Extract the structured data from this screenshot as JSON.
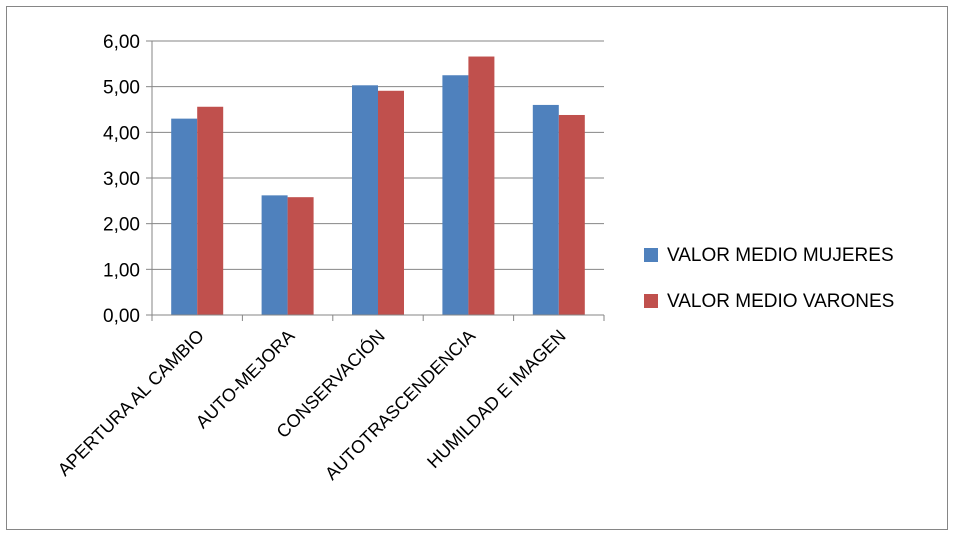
{
  "chart_data": {
    "type": "bar",
    "categories": [
      "APERTURA AL CAMBIO",
      "AUTO-MEJORA",
      "CONSERVACIÓN",
      "AUTOTRASCENDENCIA",
      "HUMILDAD E IMAGEN"
    ],
    "series": [
      {
        "name": "VALOR MEDIO MUJERES",
        "values": [
          4.3,
          2.62,
          5.03,
          5.25,
          4.6
        ],
        "color": "#4F81BD"
      },
      {
        "name": "VALOR MEDIO VARONES",
        "values": [
          4.56,
          2.58,
          4.91,
          5.66,
          4.38
        ],
        "color": "#C0504D"
      }
    ],
    "ylim": [
      0,
      6
    ],
    "yticks": [
      "0,00",
      "1,00",
      "2,00",
      "3,00",
      "4,00",
      "5,00",
      "6,00"
    ],
    "grid": true,
    "legend_position": "right"
  }
}
